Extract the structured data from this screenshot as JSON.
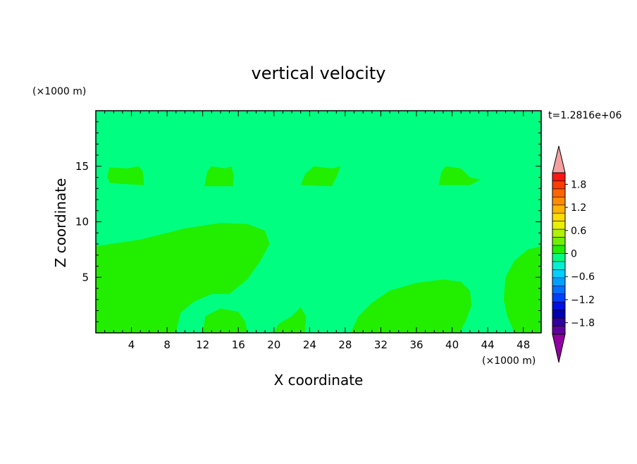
{
  "chart_data": {
    "type": "heatmap",
    "title": "vertical velocity",
    "xlabel": "X coordinate",
    "ylabel": "Z coordinate",
    "x_unit": "(×1000 m)",
    "z_unit": "(×1000 m)",
    "time_label": "t=1.2816e+06",
    "xlim": [
      0,
      50
    ],
    "ylim": [
      0,
      20
    ],
    "x_ticks": [
      4,
      8,
      12,
      16,
      20,
      24,
      28,
      32,
      36,
      40,
      44,
      48
    ],
    "y_ticks": [
      5,
      10,
      15
    ],
    "background_color": "#00ff80",
    "positive_region_color": "#22ee00",
    "regions": [
      {
        "level": "0 to 0.3",
        "points": [
          [
            0,
            7.8
          ],
          [
            5,
            8.4
          ],
          [
            10,
            9.4
          ],
          [
            14,
            9.9
          ],
          [
            17,
            9.8
          ],
          [
            19,
            9.2
          ],
          [
            19.5,
            8.0
          ],
          [
            18.5,
            6.5
          ],
          [
            17,
            4.8
          ],
          [
            15,
            3.5
          ],
          [
            13,
            3.5
          ],
          [
            11,
            2.8
          ],
          [
            9.5,
            1.8
          ],
          [
            9,
            0
          ],
          [
            0,
            0
          ]
        ]
      },
      {
        "level": "0 to 0.3",
        "points": [
          [
            12,
            0
          ],
          [
            12.3,
            1.5
          ],
          [
            14,
            2.2
          ],
          [
            16,
            1.9
          ],
          [
            16.8,
            1.0
          ],
          [
            17,
            0
          ]
        ]
      },
      {
        "level": "0 to 0.3",
        "points": [
          [
            20,
            0
          ],
          [
            20.5,
            0.8
          ],
          [
            22,
            1.5
          ],
          [
            23,
            2.3
          ],
          [
            23.6,
            1.5
          ],
          [
            23.5,
            0
          ]
        ]
      },
      {
        "level": "0 to 0.3",
        "points": [
          [
            28.6,
            0
          ],
          [
            29.5,
            1.5
          ],
          [
            31,
            2.7
          ],
          [
            33,
            3.8
          ],
          [
            36,
            4.5
          ],
          [
            39,
            4.8
          ],
          [
            41,
            4.6
          ],
          [
            42,
            3.8
          ],
          [
            42.2,
            2.5
          ],
          [
            41.5,
            1.0
          ],
          [
            40.8,
            0
          ]
        ]
      },
      {
        "level": "0 to 0.3",
        "points": [
          [
            47,
            0
          ],
          [
            46.2,
            1.5
          ],
          [
            45.8,
            3.0
          ],
          [
            46,
            5.0
          ],
          [
            47,
            6.5
          ],
          [
            48.5,
            7.5
          ],
          [
            50,
            7.8
          ],
          [
            50,
            0
          ]
        ]
      },
      {
        "level": "0 to 0.3",
        "points": [
          [
            1.3,
            14.0
          ],
          [
            1.6,
            13.5
          ],
          [
            3,
            13.4
          ],
          [
            5.4,
            13.3
          ],
          [
            5.3,
            14.5
          ],
          [
            4.8,
            15.0
          ],
          [
            3.5,
            14.8
          ],
          [
            1.5,
            14.9
          ]
        ]
      },
      {
        "level": "0 to 0.3",
        "points": [
          [
            12.2,
            13.2
          ],
          [
            12.5,
            14.5
          ],
          [
            13,
            15.0
          ],
          [
            14.5,
            14.8
          ],
          [
            15.2,
            15.0
          ],
          [
            15.5,
            14.2
          ],
          [
            15.4,
            13.2
          ]
        ]
      },
      {
        "level": "0 to 0.3",
        "points": [
          [
            23,
            13.3
          ],
          [
            23.5,
            14.3
          ],
          [
            24.5,
            15.0
          ],
          [
            26.5,
            14.8
          ],
          [
            27.5,
            15.0
          ],
          [
            27.0,
            14.0
          ],
          [
            26.5,
            13.2
          ]
        ]
      },
      {
        "level": "0 to 0.3",
        "points": [
          [
            38.5,
            13.3
          ],
          [
            38.8,
            14.5
          ],
          [
            39.3,
            15.0
          ],
          [
            41,
            14.8
          ],
          [
            42,
            14.0
          ],
          [
            43.2,
            13.8
          ],
          [
            42,
            13.3
          ]
        ]
      }
    ],
    "colorbar": {
      "labels": [
        "1.8",
        "1.2",
        "0.6",
        "0",
        "−0.6",
        "−1.2",
        "−1.8"
      ],
      "levels": [
        1.8,
        1.2,
        0.6,
        0,
        -0.6,
        -1.2,
        -1.8
      ],
      "over_color": "#f4a0a0",
      "under_color": "#9000a0",
      "colors": [
        "#ff1414",
        "#ff3c00",
        "#ff6400",
        "#ff8c00",
        "#ffb400",
        "#ffdc00",
        "#e8f000",
        "#b0f000",
        "#70f000",
        "#22ee00",
        "#00ff80",
        "#00f0d0",
        "#00d0ff",
        "#00a0ff",
        "#0070ff",
        "#0040ff",
        "#0010e0",
        "#0000b0",
        "#3000a0",
        "#6000a0"
      ]
    }
  }
}
